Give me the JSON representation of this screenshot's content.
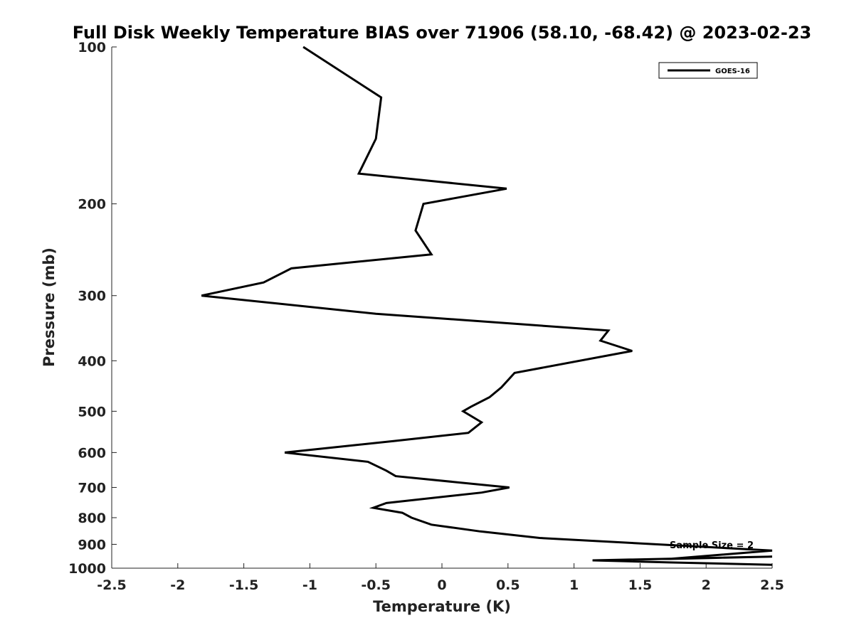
{
  "chart_data": {
    "type": "line",
    "title": "Full Disk Weekly Temperature BIAS over 71906 (58.10, -68.42) @ 2023-02-23",
    "xlabel": "Temperature (K)",
    "ylabel": "Pressure (mb)",
    "xlim": [
      -2.5,
      2.5
    ],
    "ylim": [
      100,
      1000
    ],
    "y_scale": "log",
    "y_reversed": true,
    "x_ticks": [
      -2.5,
      -2,
      -1.5,
      -1,
      -0.5,
      0,
      0.5,
      1,
      1.5,
      2,
      2.5
    ],
    "x_tick_labels": [
      "-2.5",
      "-2",
      "-1.5",
      "-1",
      "-0.5",
      "0",
      "0.5",
      "1",
      "1.5",
      "2",
      "2.5"
    ],
    "y_ticks": [
      100,
      200,
      300,
      400,
      500,
      600,
      700,
      800,
      900,
      1000
    ],
    "y_tick_labels": [
      "100",
      "200",
      "300",
      "400",
      "500",
      "600",
      "700",
      "800",
      "900",
      "1000"
    ],
    "grid": false,
    "legend": {
      "position": "top-right",
      "entries": [
        "GOES-16"
      ]
    },
    "annotations": [
      {
        "text": "Sample Size = 2"
      }
    ],
    "series": [
      {
        "name": "GOES-16",
        "color": "#000000",
        "points": [
          {
            "x": -1.05,
            "p": 100
          },
          {
            "x": -0.46,
            "p": 125
          },
          {
            "x": -0.5,
            "p": 150
          },
          {
            "x": -0.63,
            "p": 175
          },
          {
            "x": 0.49,
            "p": 187
          },
          {
            "x": -0.14,
            "p": 200
          },
          {
            "x": -0.2,
            "p": 225
          },
          {
            "x": -0.08,
            "p": 250
          },
          {
            "x": -1.14,
            "p": 266
          },
          {
            "x": -1.35,
            "p": 283
          },
          {
            "x": -1.82,
            "p": 300
          },
          {
            "x": -0.5,
            "p": 325
          },
          {
            "x": 1.26,
            "p": 350
          },
          {
            "x": 1.2,
            "p": 366
          },
          {
            "x": 1.44,
            "p": 383
          },
          {
            "x": 0.55,
            "p": 422
          },
          {
            "x": 0.45,
            "p": 450
          },
          {
            "x": 0.36,
            "p": 470
          },
          {
            "x": 0.22,
            "p": 490
          },
          {
            "x": 0.16,
            "p": 500
          },
          {
            "x": 0.3,
            "p": 525
          },
          {
            "x": 0.2,
            "p": 550
          },
          {
            "x": -0.36,
            "p": 570
          },
          {
            "x": -1.19,
            "p": 600
          },
          {
            "x": -0.56,
            "p": 625
          },
          {
            "x": -0.42,
            "p": 650
          },
          {
            "x": -0.35,
            "p": 666
          },
          {
            "x": 0.51,
            "p": 700
          },
          {
            "x": 0.3,
            "p": 716
          },
          {
            "x": -0.42,
            "p": 750
          },
          {
            "x": -0.52,
            "p": 766
          },
          {
            "x": -0.3,
            "p": 783
          },
          {
            "x": -0.23,
            "p": 800
          },
          {
            "x": -0.08,
            "p": 825
          },
          {
            "x": 0.29,
            "p": 850
          },
          {
            "x": 0.74,
            "p": 875
          },
          {
            "x": 2.5,
            "p": 925
          },
          {
            "x": 1.72,
            "p": 960
          },
          {
            "x": 2.5,
            "p": 950
          },
          {
            "x": 1.14,
            "p": 966
          },
          {
            "x": 1.72,
            "p": 975
          },
          {
            "x": 2.5,
            "p": 985
          }
        ]
      }
    ]
  }
}
